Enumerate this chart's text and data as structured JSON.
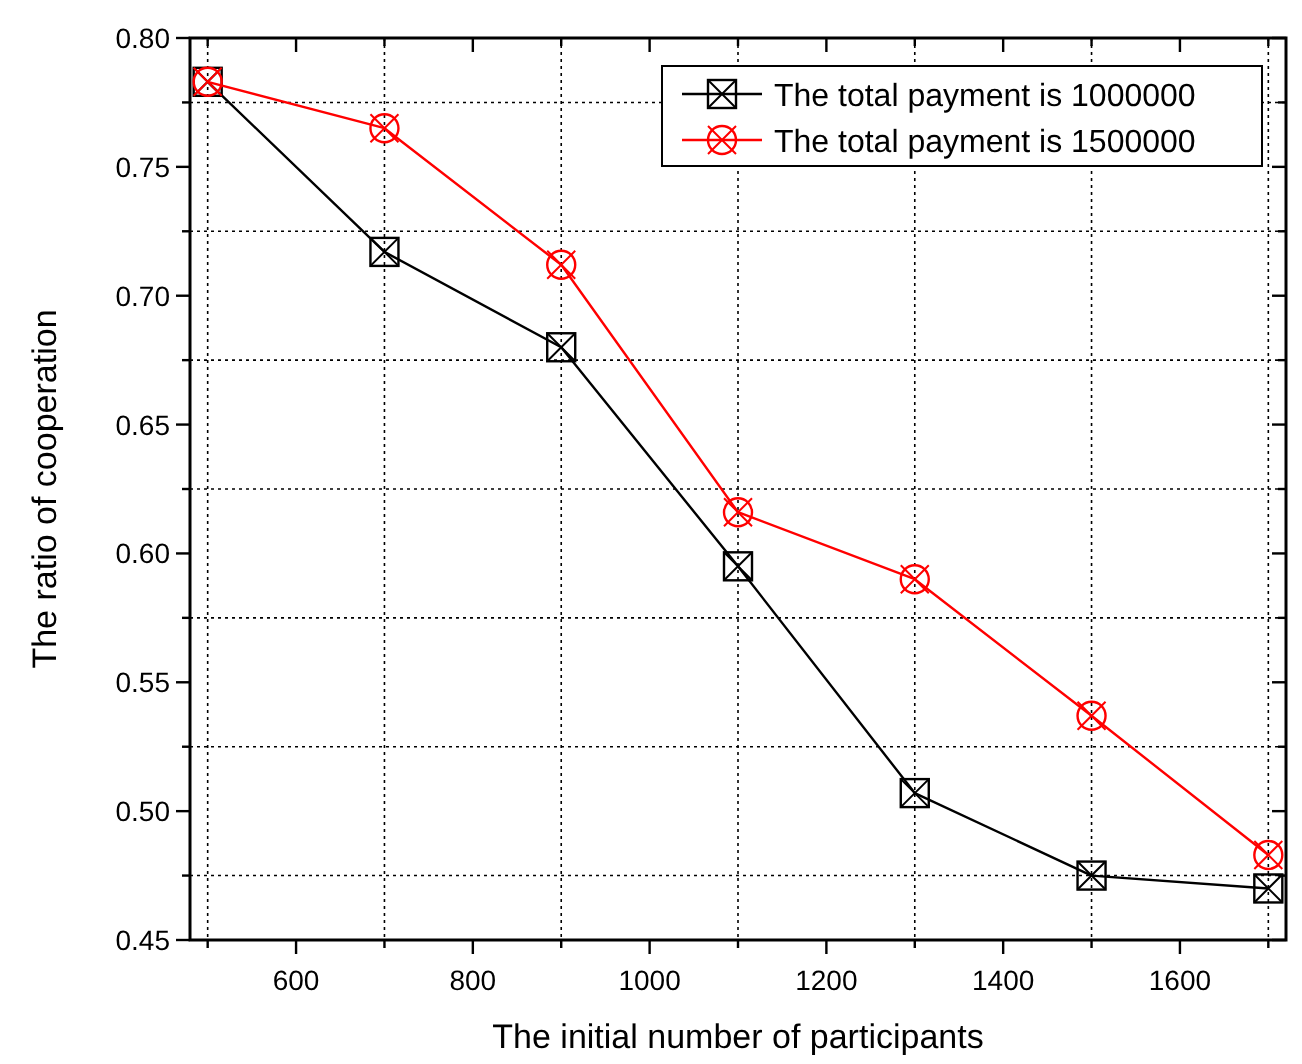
{
  "chart_data": {
    "type": "line",
    "xlabel": "The initial number of participants",
    "ylabel": "The ratio of cooperation",
    "x": [
      500,
      700,
      900,
      1100,
      1300,
      1500,
      1700
    ],
    "series": [
      {
        "name": "The total payment is 1000000",
        "color": "#000000",
        "marker": "square",
        "values": [
          0.783,
          0.717,
          0.68,
          0.595,
          0.507,
          0.475,
          0.47
        ]
      },
      {
        "name": "The total payment is 1500000",
        "color": "#ff0000",
        "marker": "circle",
        "values": [
          0.783,
          0.765,
          0.712,
          0.616,
          0.59,
          0.537,
          0.483
        ]
      }
    ],
    "xlim": [
      480,
      1720
    ],
    "xticks": [
      {
        "value": 500,
        "label": null
      },
      600,
      {
        "value": 700,
        "label": null
      },
      800,
      {
        "value": 900,
        "label": null
      },
      1000,
      {
        "value": 1100,
        "label": null
      },
      1200,
      {
        "value": 1300,
        "label": null
      },
      1400,
      {
        "value": 1500,
        "label": null
      },
      1600,
      {
        "value": 1700,
        "label": null
      }
    ],
    "ylim": [
      0.45,
      0.8
    ],
    "yticks": [
      {
        "value": 0.45,
        "label": "0.45"
      },
      {
        "value": 0.475,
        "label": null
      },
      {
        "value": 0.5,
        "label": "0.50"
      },
      {
        "value": 0.525,
        "label": null
      },
      {
        "value": 0.55,
        "label": "0.55"
      },
      {
        "value": 0.575,
        "label": null
      },
      {
        "value": 0.6,
        "label": "0.60"
      },
      {
        "value": 0.625,
        "label": null
      },
      {
        "value": 0.65,
        "label": "0.65"
      },
      {
        "value": 0.675,
        "label": null
      },
      {
        "value": 0.7,
        "label": "0.70"
      },
      {
        "value": 0.725,
        "label": null
      },
      {
        "value": 0.75,
        "label": "0.75"
      },
      {
        "value": 0.775,
        "label": null
      },
      {
        "value": 0.8,
        "label": "0.80"
      }
    ],
    "grid": true,
    "legend": "top right",
    "line_style": "solid"
  }
}
